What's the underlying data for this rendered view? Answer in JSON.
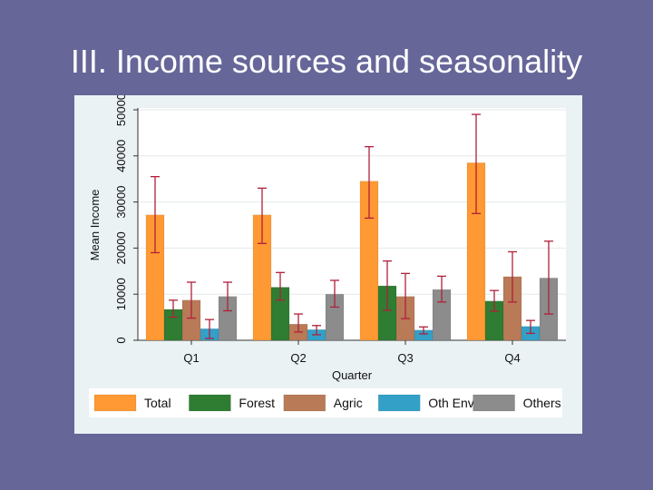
{
  "slide": {
    "title": "III. Income sources and seasonality"
  },
  "chart_data": {
    "type": "bar",
    "title": "",
    "xlabel": "Quarter",
    "ylabel": "Mean Income",
    "ylim": [
      0,
      50000
    ],
    "yticks": [
      0,
      10000,
      20000,
      30000,
      40000,
      50000
    ],
    "categories": [
      "Q1",
      "Q2",
      "Q3",
      "Q4"
    ],
    "grid": true,
    "legend_position": "bottom",
    "series": [
      {
        "name": "Total",
        "color": "#ff9933",
        "values": [
          27200,
          27200,
          34500,
          38500
        ],
        "err_low": [
          19000,
          21000,
          26500,
          27500
        ],
        "err_high": [
          35500,
          33000,
          42000,
          49000
        ]
      },
      {
        "name": "Forest",
        "color": "#2e7d32",
        "values": [
          6700,
          11500,
          11800,
          8500
        ],
        "err_low": [
          5000,
          8700,
          6500,
          6300
        ],
        "err_high": [
          8700,
          14700,
          17200,
          10800
        ]
      },
      {
        "name": "Agric",
        "color": "#b97a57",
        "values": [
          8700,
          3500,
          9500,
          13800
        ],
        "err_low": [
          4800,
          1800,
          4700,
          8300
        ],
        "err_high": [
          12600,
          5700,
          14500,
          19200
        ]
      },
      {
        "name": "Oth Env",
        "color": "#33a0c8",
        "values": [
          2500,
          2300,
          2200,
          3000
        ],
        "err_low": [
          400,
          1200,
          1400,
          1500
        ],
        "err_high": [
          4500,
          3200,
          2900,
          4300
        ]
      },
      {
        "name": "Others",
        "color": "#8c8c8c",
        "values": [
          9500,
          10000,
          11000,
          13500
        ],
        "err_low": [
          6400,
          7200,
          8300,
          5700
        ],
        "err_high": [
          12600,
          13000,
          13900,
          21500
        ]
      }
    ],
    "error_bar_color": "#b0203a"
  }
}
